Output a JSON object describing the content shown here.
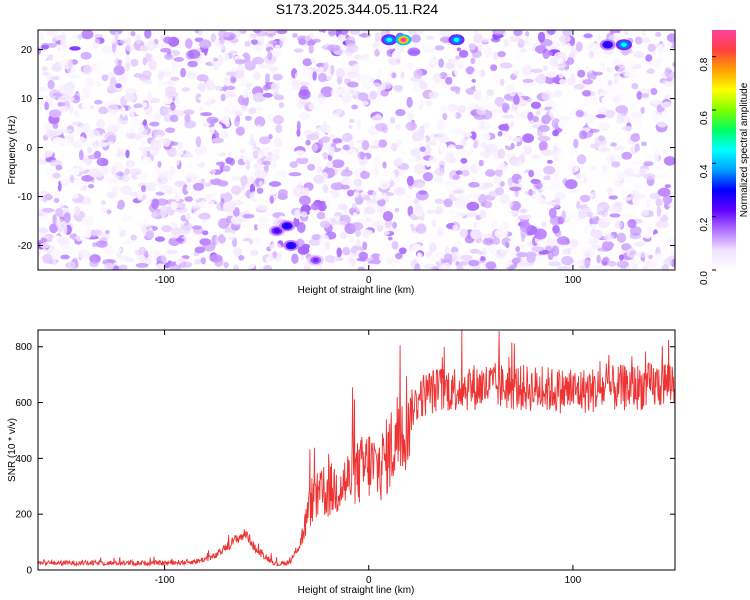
{
  "chart_data": [
    {
      "type": "heatmap",
      "title": "S173.2025.344.05.11.R24",
      "xlabel": "Height of straight line (km)",
      "ylabel": "Frequency (Hz)",
      "xlim": [
        -162,
        150
      ],
      "ylim": [
        -25,
        24
      ],
      "xticks": [
        -100,
        0,
        100
      ],
      "yticks": [
        20,
        10,
        0,
        -10,
        -20
      ],
      "colorbar": {
        "label": "Normalized spectral amplitude",
        "range": [
          0.0,
          0.9
        ],
        "ticks": [
          0.0,
          0.2,
          0.4,
          0.6,
          0.8
        ],
        "colors": [
          "#ffffff",
          "#f0e0ff",
          "#b070ff",
          "#6000ff",
          "#0000ff",
          "#00a0ff",
          "#00ffff",
          "#00ff60",
          "#80ff00",
          "#ffff00",
          "#ffa000",
          "#ff4040",
          "#ff40a0"
        ]
      },
      "hotspots": [
        {
          "x": 10,
          "y": 22,
          "value": 0.45
        },
        {
          "x": 17,
          "y": 22,
          "value": 0.9
        },
        {
          "x": 43,
          "y": 22,
          "value": 0.45
        },
        {
          "x": 117,
          "y": 21,
          "value": 0.3
        },
        {
          "x": 125,
          "y": 21,
          "value": 0.45
        },
        {
          "x": -45,
          "y": -17,
          "value": 0.25
        },
        {
          "x": -40,
          "y": -16,
          "value": 0.3
        },
        {
          "x": -38,
          "y": -20,
          "value": 0.3
        },
        {
          "x": -26,
          "y": -23,
          "value": 0.2
        }
      ],
      "gaps_x": [
        [
          -42,
          -37
        ],
        [
          17,
          20
        ]
      ]
    },
    {
      "type": "line",
      "xlabel": "Height of straight line (km)",
      "ylabel": "SNR (10 * v/v)",
      "xlim": [
        -162,
        150
      ],
      "ylim": [
        0,
        860
      ],
      "xticks": [
        -100,
        0,
        100
      ],
      "yticks": [
        0,
        200,
        400,
        600,
        800
      ],
      "series": [
        {
          "name": "SNR",
          "color": "#ee3333",
          "x": [
            -162,
            -140,
            -120,
            -100,
            -85,
            -75,
            -65,
            -60,
            -55,
            -45,
            -38,
            -33,
            -28,
            -22,
            -15,
            -8,
            0,
            5,
            10,
            15,
            20,
            25,
            30,
            40,
            60,
            80,
            100,
            120,
            140,
            150
          ],
          "y": [
            25,
            25,
            25,
            25,
            30,
            50,
            110,
            130,
            70,
            20,
            30,
            110,
            250,
            270,
            300,
            330,
            380,
            360,
            420,
            500,
            560,
            620,
            640,
            650,
            660,
            650,
            640,
            650,
            660,
            680
          ]
        }
      ]
    }
  ]
}
